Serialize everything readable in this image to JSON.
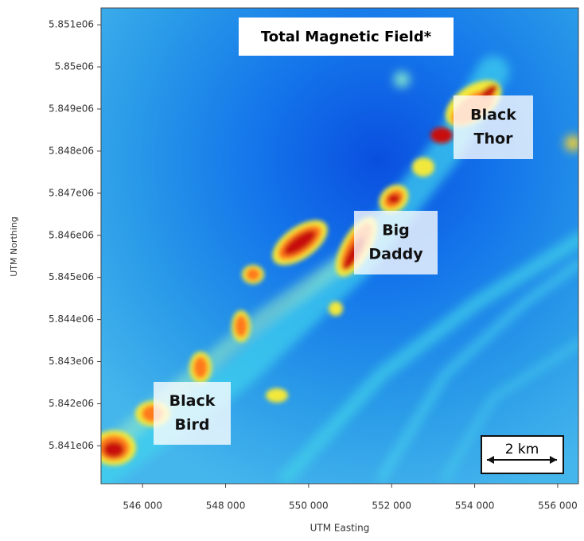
{
  "title": "Total Magnetic Field*",
  "x_axis": {
    "label": "UTM Easting",
    "lim": [
      545000,
      556500
    ],
    "ticks": [
      {
        "value": 546000,
        "label": "546 000"
      },
      {
        "value": 548000,
        "label": "548 000"
      },
      {
        "value": 550000,
        "label": "550 000"
      },
      {
        "value": 552000,
        "label": "552 000"
      },
      {
        "value": 554000,
        "label": "554 000"
      },
      {
        "value": 556000,
        "label": "556 000"
      }
    ]
  },
  "y_axis": {
    "label": "UTM Northing",
    "lim": [
      5840100,
      5851400
    ],
    "ticks": [
      {
        "value": 5841000,
        "label": "5.841e06"
      },
      {
        "value": 5842000,
        "label": "5.842e06"
      },
      {
        "value": 5843000,
        "label": "5.843e06"
      },
      {
        "value": 5844000,
        "label": "5.844e06"
      },
      {
        "value": 5845000,
        "label": "5.845e06"
      },
      {
        "value": 5846000,
        "label": "5.846e06"
      },
      {
        "value": 5847000,
        "label": "5.847e06"
      },
      {
        "value": 5848000,
        "label": "5.848e06"
      },
      {
        "value": 5849000,
        "label": "5.849e06"
      },
      {
        "value": 5850000,
        "label": "5.85e06"
      },
      {
        "value": 5851000,
        "label": "5.851e06"
      }
    ]
  },
  "annotations": [
    {
      "lines": [
        "Black",
        "Thor"
      ]
    },
    {
      "lines": [
        "Big",
        "Daddy"
      ]
    },
    {
      "lines": [
        "Black",
        "Bird"
      ]
    }
  ],
  "scale_bar": "2 km"
}
